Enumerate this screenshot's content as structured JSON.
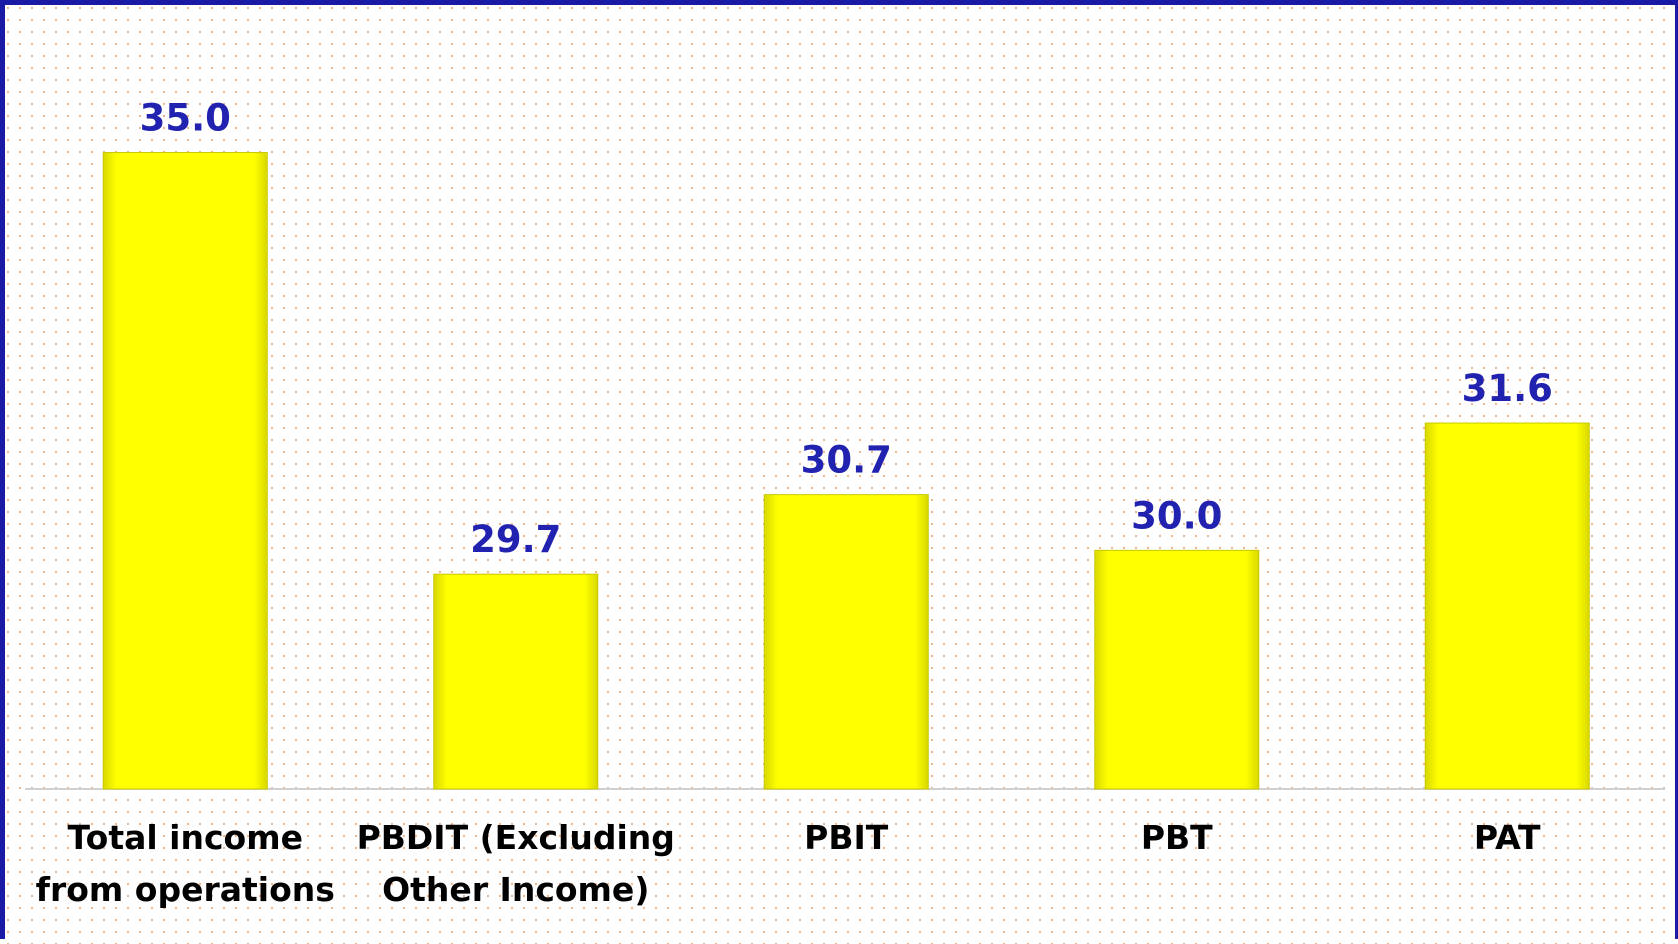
{
  "chart_data": {
    "type": "bar",
    "categories": [
      "Total income from operations",
      "PBDIT (Excluding Other Income)",
      "PBIT",
      "PBT",
      "PAT"
    ],
    "values": [
      35.0,
      29.7,
      30.7,
      30.0,
      31.6
    ],
    "value_labels": [
      "35.0",
      "29.7",
      "30.7",
      "30.0",
      "31.6"
    ],
    "color": "#ffff00",
    "label_color": "#2222b0",
    "ylim": [
      27,
      36
    ]
  }
}
